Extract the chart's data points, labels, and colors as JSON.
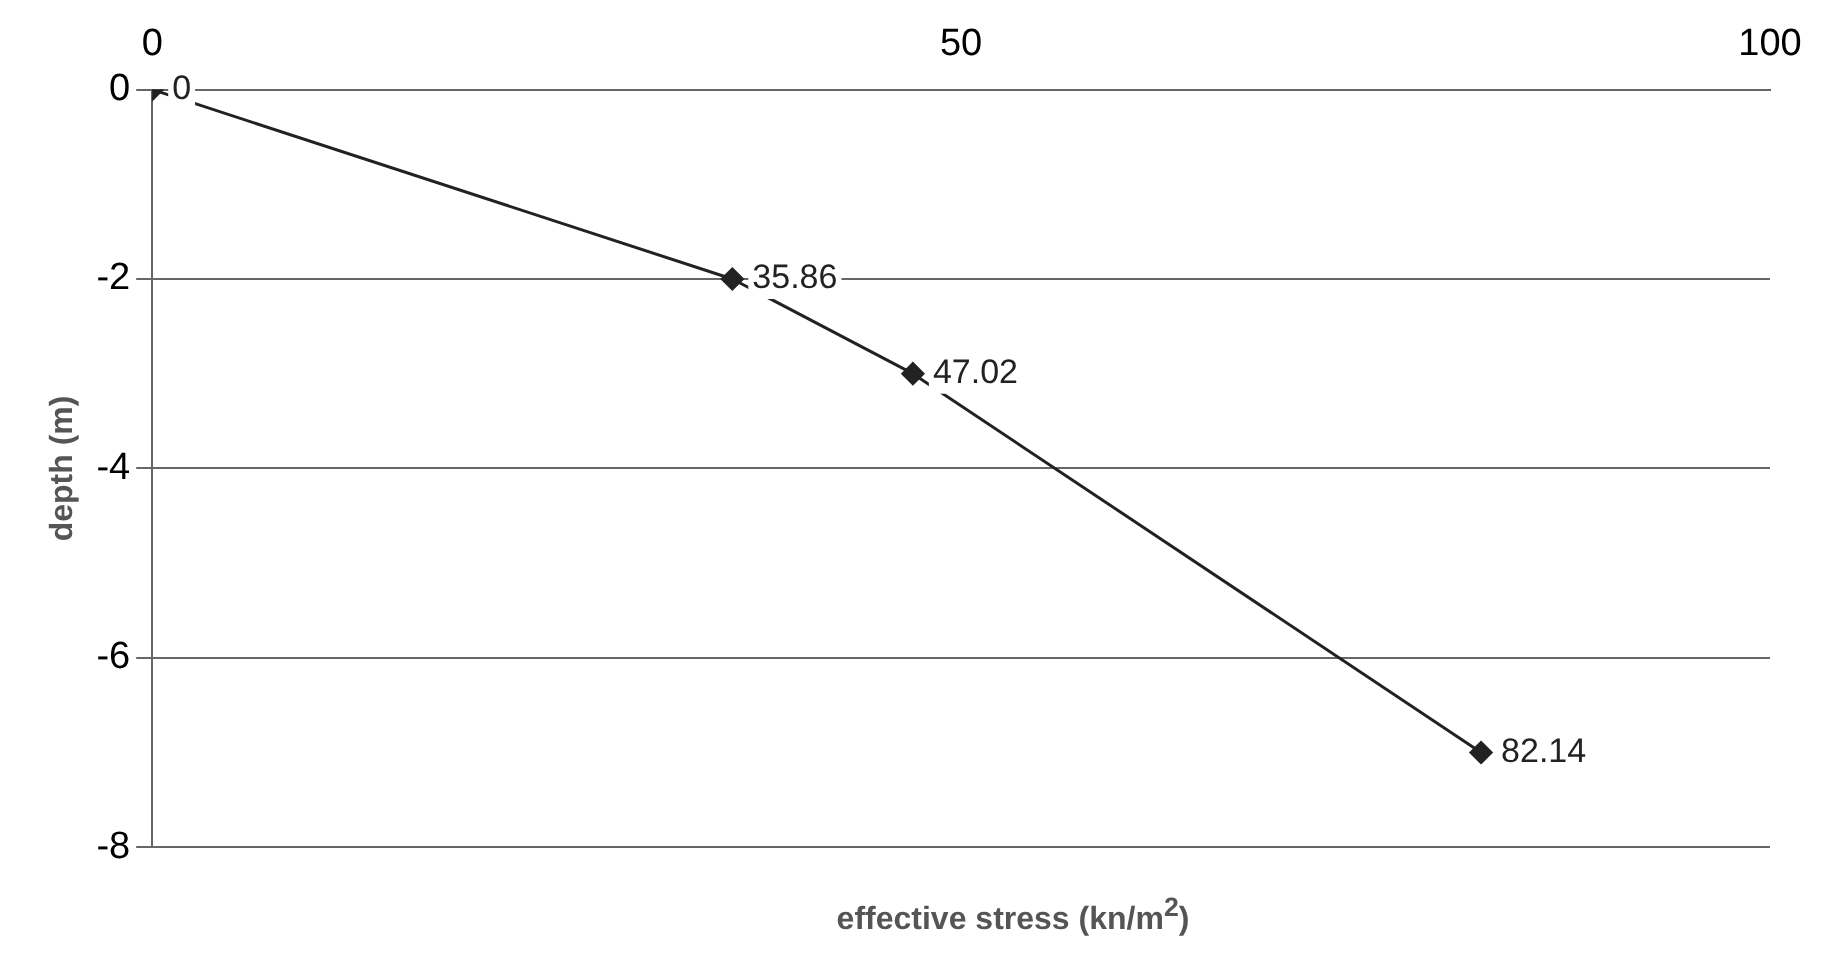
{
  "chart_data": {
    "type": "line",
    "xlabel": "effective stress (kn/m$^{2}$)",
    "ylabel": "depth (m)",
    "x": [
      0,
      35.86,
      47.02,
      82.14
    ],
    "series": [
      {
        "color": "#222222",
        "values": [
          0,
          -2,
          -3,
          -7
        ]
      }
    ],
    "annotations": [
      {
        "text": "0",
        "x": 0,
        "y": 0
      },
      {
        "text": "35.86",
        "x": 35.86,
        "y": -2
      },
      {
        "text": "47.02",
        "x": 47.02,
        "y": -3
      },
      {
        "text": "82.14",
        "x": 82.14,
        "y": -7
      }
    ],
    "xlim": [
      0,
      100
    ],
    "xticks": [
      0,
      50,
      100
    ],
    "ylim": [
      -8,
      0
    ],
    "yticks": [
      0,
      -2,
      -4,
      -6,
      -8
    ],
    "grid": "y",
    "marker": "diamond",
    "line_style": "solid",
    "legend": false
  }
}
